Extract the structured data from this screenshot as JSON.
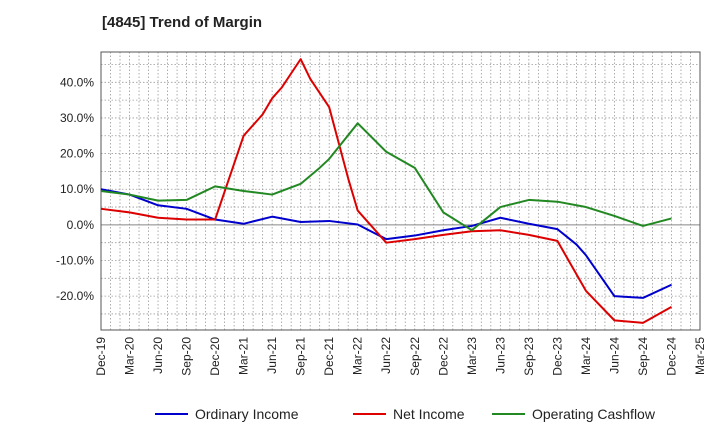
{
  "chart_data": {
    "type": "line",
    "title": "[4845]  Trend of Margin",
    "xlabel": "",
    "ylabel": "",
    "x_ticks": [
      "Dec-19",
      "Mar-20",
      "Jun-20",
      "Sep-20",
      "Dec-20",
      "Mar-21",
      "Jun-21",
      "Sep-21",
      "Dec-21",
      "Mar-22",
      "Jun-22",
      "Sep-22",
      "Dec-22",
      "Mar-23",
      "Jun-23",
      "Sep-23",
      "Dec-23",
      "Mar-24",
      "Jun-24",
      "Sep-24",
      "Dec-24",
      "Mar-25"
    ],
    "y_ticks": [
      "40.0%",
      "30.0%",
      "20.0%",
      "10.0%",
      "0.0%",
      "-10.0%",
      "-20.0%"
    ],
    "ylim": [
      -29.5,
      48.5
    ],
    "grid": true,
    "legend_position": "bottom",
    "colors": {
      "ordinary": "#0000cc",
      "net": "#dd0000",
      "cashflow": "#228822"
    },
    "series": [
      {
        "name": "Ordinary Income",
        "color": "#0000cc",
        "points": [
          [
            "Dec-19",
            10.0
          ],
          [
            "Mar-20",
            8.5
          ],
          [
            "Jun-20",
            5.5
          ],
          [
            "Sep-20",
            4.5
          ],
          [
            "Dec-20",
            1.5
          ],
          [
            "Mar-21",
            0.3
          ],
          [
            "Jun-21",
            2.3
          ],
          [
            "Sep-21",
            0.8
          ],
          [
            "Dec-21",
            1.1
          ],
          [
            "Mar-22",
            0.1
          ],
          [
            "Jun-22",
            -4.0
          ],
          [
            "Sep-22",
            -3.0
          ],
          [
            "Dec-22",
            -1.5
          ],
          [
            "Mar-23",
            -0.3
          ],
          [
            "Jun-23",
            2.0
          ],
          [
            "Sep-23",
            0.3
          ],
          [
            "Dec-23",
            -1.2
          ],
          [
            "Feb-24",
            -5.5
          ],
          [
            "Mar-24",
            -8.5
          ],
          [
            "Jun-24",
            -20.0
          ],
          [
            "Sep-24",
            -20.5
          ],
          [
            "Dec-24",
            -16.8
          ]
        ]
      },
      {
        "name": "Net Income",
        "color": "#dd0000",
        "points": [
          [
            "Dec-19",
            4.5
          ],
          [
            "Mar-20",
            3.5
          ],
          [
            "Jun-20",
            2.0
          ],
          [
            "Sep-20",
            1.5
          ],
          [
            "Dec-20",
            1.5
          ],
          [
            "Mar-21",
            25.0
          ],
          [
            "May-21",
            31.0
          ],
          [
            "Jun-21",
            35.5
          ],
          [
            "Jul-21",
            38.5
          ],
          [
            "Aug-21",
            42.5
          ],
          [
            "Sep-21",
            46.5
          ],
          [
            "Oct-21",
            41.0
          ],
          [
            "Nov-21",
            37.0
          ],
          [
            "Dec-21",
            33.0
          ],
          [
            "Jan-22",
            23.0
          ],
          [
            "Feb-22",
            13.0
          ],
          [
            "Mar-22",
            4.0
          ],
          [
            "Jun-22",
            -5.0
          ],
          [
            "Sep-22",
            -4.0
          ],
          [
            "Dec-22",
            -2.8
          ],
          [
            "Mar-23",
            -1.8
          ],
          [
            "Jun-23",
            -1.5
          ],
          [
            "Sep-23",
            -2.8
          ],
          [
            "Dec-23",
            -4.5
          ],
          [
            "Mar-24",
            -18.5
          ],
          [
            "Jun-24",
            -26.8
          ],
          [
            "Sep-24",
            -27.5
          ],
          [
            "Dec-24",
            -23.0
          ]
        ]
      },
      {
        "name": "Operating Cashflow",
        "color": "#228822",
        "points": [
          [
            "Dec-19",
            9.5
          ],
          [
            "Mar-20",
            8.5
          ],
          [
            "Jun-20",
            6.8
          ],
          [
            "Sep-20",
            7.0
          ],
          [
            "Dec-20",
            10.8
          ],
          [
            "Mar-21",
            9.5
          ],
          [
            "Jun-21",
            8.5
          ],
          [
            "Sep-21",
            11.5
          ],
          [
            "Nov-21",
            16.0
          ],
          [
            "Dec-21",
            18.5
          ],
          [
            "Mar-22",
            28.5
          ],
          [
            "Jun-22",
            20.5
          ],
          [
            "Sep-22",
            16.0
          ],
          [
            "Dec-22",
            3.5
          ],
          [
            "Mar-23",
            -1.5
          ],
          [
            "Jun-23",
            5.0
          ],
          [
            "Sep-23",
            7.0
          ],
          [
            "Dec-23",
            6.5
          ],
          [
            "Mar-24",
            5.0
          ],
          [
            "Jun-24",
            2.5
          ],
          [
            "Sep-24",
            -0.3
          ],
          [
            "Dec-24",
            1.8
          ]
        ]
      }
    ]
  }
}
